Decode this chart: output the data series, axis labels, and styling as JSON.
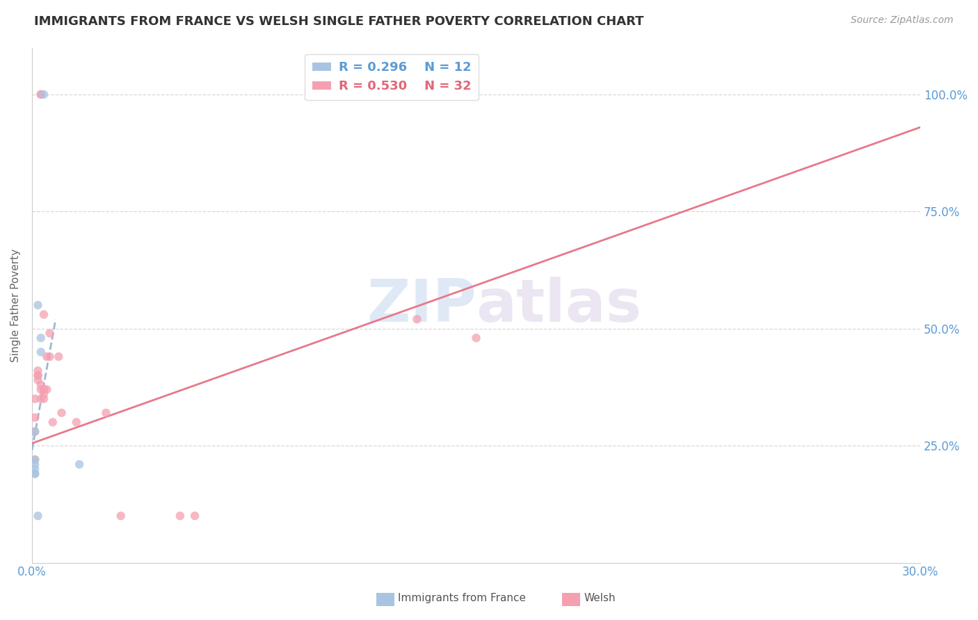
{
  "title": "IMMIGRANTS FROM FRANCE VS WELSH SINGLE FATHER POVERTY CORRELATION CHART",
  "source": "Source: ZipAtlas.com",
  "ylabel_left": "Single Father Poverty",
  "x_min": 0.0,
  "x_max": 0.3,
  "y_min": 0.0,
  "y_max": 1.1,
  "x_ticks": [
    0.0,
    0.05,
    0.1,
    0.15,
    0.2,
    0.25,
    0.3
  ],
  "x_tick_labels": [
    "0.0%",
    "",
    "",
    "",
    "",
    "",
    "30.0%"
  ],
  "y_ticks_right": [
    0.0,
    0.25,
    0.5,
    0.75,
    1.0
  ],
  "y_tick_labels_right": [
    "",
    "25.0%",
    "50.0%",
    "75.0%",
    "100.0%"
  ],
  "grid_color": "#d8d8d8",
  "background_color": "#ffffff",
  "legend_r1": "R = 0.296",
  "legend_n1": "N = 12",
  "legend_r2": "R = 0.530",
  "legend_n2": "N = 32",
  "color_blue": "#a8c4e0",
  "color_pink": "#f4a0b0",
  "color_blue_line": "#9ab8d8",
  "color_pink_line": "#e8788a",
  "color_axis_labels": "#5b9bd5",
  "watermark_zip": "ZIP",
  "watermark_atlas": "atlas",
  "blue_x": [
    0.004,
    0.003,
    0.003,
    0.002,
    0.001,
    0.001,
    0.001,
    0.001,
    0.001,
    0.001,
    0.016,
    0.002
  ],
  "blue_y": [
    1.0,
    0.48,
    0.45,
    0.55,
    0.28,
    0.22,
    0.2,
    0.21,
    0.19,
    0.19,
    0.21,
    0.1
  ],
  "pink_x": [
    0.003,
    0.003,
    0.001,
    0.001,
    0.001,
    0.001,
    0.002,
    0.002,
    0.002,
    0.002,
    0.003,
    0.003,
    0.003,
    0.004,
    0.004,
    0.004,
    0.004,
    0.004,
    0.005,
    0.005,
    0.006,
    0.006,
    0.007,
    0.009,
    0.01,
    0.015,
    0.025,
    0.03,
    0.05,
    0.055,
    0.13,
    0.15
  ],
  "pink_y": [
    1.0,
    1.0,
    0.22,
    0.28,
    0.35,
    0.31,
    0.41,
    0.4,
    0.4,
    0.39,
    0.38,
    0.37,
    0.35,
    0.37,
    0.37,
    0.36,
    0.35,
    0.53,
    0.37,
    0.44,
    0.49,
    0.44,
    0.3,
    0.44,
    0.32,
    0.3,
    0.32,
    0.1,
    0.1,
    0.1,
    0.52,
    0.48
  ],
  "blue_trend_x0": 0.0,
  "blue_trend_x1": 0.008,
  "blue_trend_y0": 0.24,
  "blue_trend_y1": 0.52,
  "pink_trend_x0": 0.0,
  "pink_trend_x1": 0.3,
  "pink_trend_y0": 0.255,
  "pink_trend_y1": 0.93
}
